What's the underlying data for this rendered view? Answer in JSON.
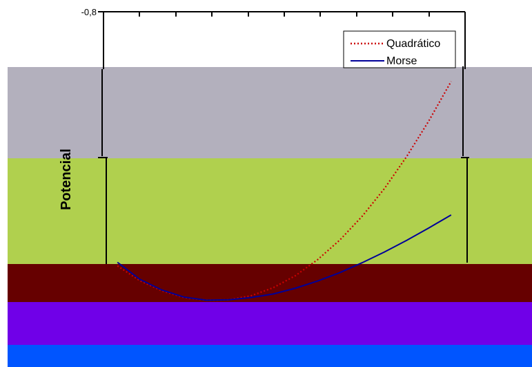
{
  "chart_data": {
    "type": "line",
    "title": "",
    "xlabel": "",
    "ylabel": "Potencial",
    "y_tick_labels": [
      "-0,8"
    ],
    "series": [
      {
        "name": "Quadrático",
        "style": "dotted",
        "color": "#cc0000",
        "x": [
          -0.4,
          -0.32,
          -0.24,
          -0.16,
          -0.08,
          0.0,
          0.08,
          0.16,
          0.24,
          0.32,
          0.4,
          0.48,
          0.56,
          0.64,
          0.72,
          0.8
        ],
        "y": [
          -0.869,
          -0.902,
          -0.925,
          -0.94,
          -0.946,
          -0.945,
          -0.936,
          -0.918,
          -0.891,
          -0.855,
          -0.811,
          -0.758,
          -0.696,
          -0.624,
          -0.544,
          -0.456
        ]
      },
      {
        "name": "Morse",
        "style": "solid",
        "color": "#000099",
        "x": [
          -0.4,
          -0.32,
          -0.24,
          -0.16,
          -0.08,
          0.0,
          0.08,
          0.16,
          0.24,
          0.32,
          0.4,
          0.48,
          0.56,
          0.64,
          0.72,
          0.8
        ],
        "y": [
          -0.861,
          -0.899,
          -0.923,
          -0.939,
          -0.946,
          -0.945,
          -0.94,
          -0.932,
          -0.919,
          -0.903,
          -0.884,
          -0.862,
          -0.838,
          -0.812,
          -0.784,
          -0.755
        ]
      }
    ],
    "legend": {
      "placement": "top-right",
      "entries": [
        "Quadrático",
        "Morse"
      ]
    }
  },
  "background_bands": [
    {
      "name": "white-band",
      "color": "#ffffff"
    },
    {
      "name": "gray-band",
      "color": "#b3b0bd"
    },
    {
      "name": "olive-band",
      "color": "#b0d04e"
    },
    {
      "name": "maroon-band",
      "color": "#660000"
    },
    {
      "name": "purple-band",
      "color": "#7000e8"
    },
    {
      "name": "blue-band",
      "color": "#0055ff"
    }
  ]
}
